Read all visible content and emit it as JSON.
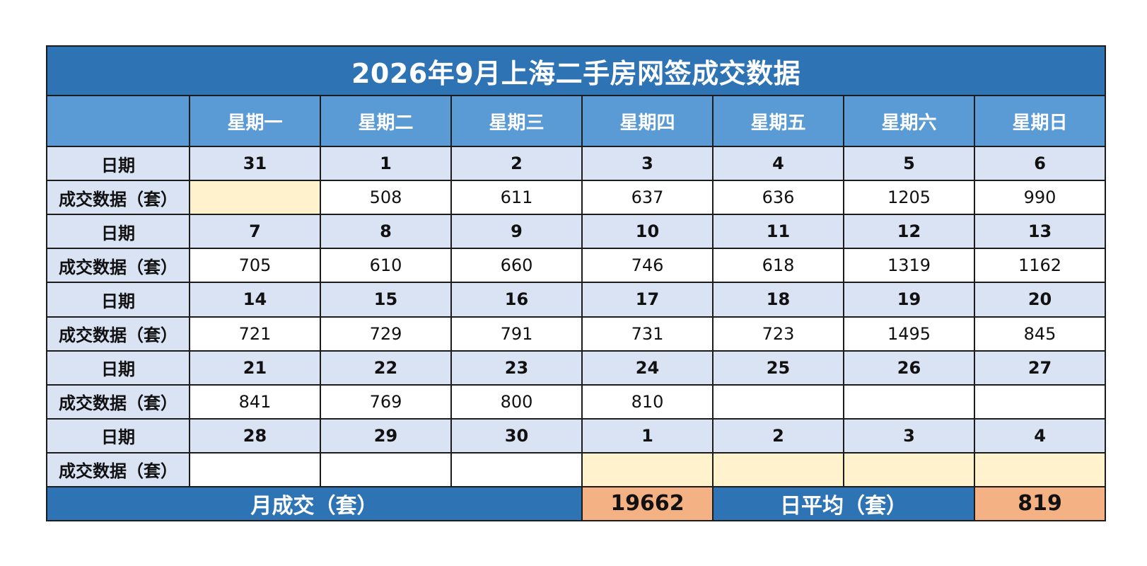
{
  "title": "2026年9月上海二手房网签成交数据",
  "colors": {
    "title_bg": "#2e74b5",
    "weekday_bg": "#5b9bd5",
    "date_row_bg": "#dae3f3",
    "empty_highlight": "#fff2cc",
    "summary_value_bg": "#f4b183"
  },
  "weekday_corner": "",
  "weekdays": [
    "星期一",
    "星期二",
    "星期三",
    "星期四",
    "星期五",
    "星期六",
    "星期日"
  ],
  "weeks": [
    {
      "date_label": "日期",
      "dates": [
        "31",
        "1",
        "2",
        "3",
        "4",
        "5",
        "6"
      ],
      "value_label": "成交数据（套）",
      "values": [
        "",
        "508",
        "611",
        "637",
        "636",
        "1205",
        "990"
      ]
    },
    {
      "date_label": "日期",
      "dates": [
        "7",
        "8",
        "9",
        "10",
        "11",
        "12",
        "13"
      ],
      "value_label": "成交数据（套）",
      "values": [
        "705",
        "610",
        "660",
        "746",
        "618",
        "1319",
        "1162"
      ]
    },
    {
      "date_label": "日期",
      "dates": [
        "14",
        "15",
        "16",
        "17",
        "18",
        "19",
        "20"
      ],
      "value_label": "成交数据（套）",
      "values": [
        "721",
        "729",
        "791",
        "731",
        "723",
        "1495",
        "845"
      ]
    },
    {
      "date_label": "日期",
      "dates": [
        "21",
        "22",
        "23",
        "24",
        "25",
        "26",
        "27"
      ],
      "value_label": "成交数据（套）",
      "values": [
        "841",
        "769",
        "800",
        "810",
        "",
        "",
        ""
      ]
    },
    {
      "date_label": "日期",
      "dates": [
        "28",
        "29",
        "30",
        "1",
        "2",
        "3",
        "4"
      ],
      "value_label": "成交数据（套）",
      "values": [
        "",
        "",
        "",
        "",
        "",
        "",
        ""
      ]
    }
  ],
  "summary": {
    "monthly_label": "月成交（套）",
    "monthly_value": "19662",
    "daily_avg_label": "日平均（套）",
    "daily_avg_value": "819"
  }
}
